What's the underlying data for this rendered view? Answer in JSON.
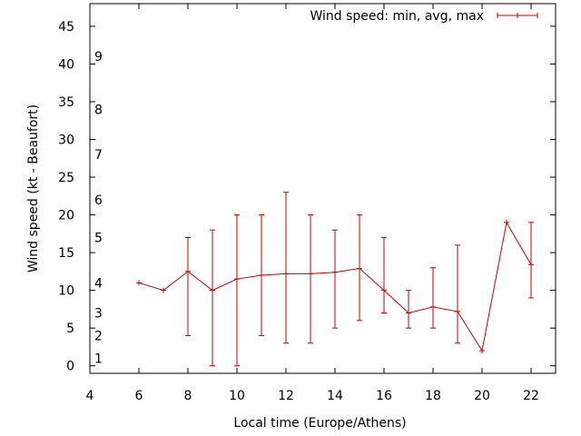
{
  "chart_data": {
    "type": "line",
    "title": "",
    "xlabel": "Local time (Europe/Athens)",
    "ylabel": "Wind speed (kt - Beaufort)",
    "xlim": [
      4,
      23
    ],
    "ylim": [
      -1,
      48
    ],
    "x_ticks": [
      4,
      6,
      8,
      10,
      12,
      14,
      16,
      18,
      20,
      22
    ],
    "y_ticks": [
      0,
      5,
      10,
      15,
      20,
      25,
      30,
      35,
      40,
      45
    ],
    "beaufort_scale": [
      {
        "label": "1",
        "kt": 1
      },
      {
        "label": "2",
        "kt": 4
      },
      {
        "label": "3",
        "kt": 7
      },
      {
        "label": "4",
        "kt": 11
      },
      {
        "label": "5",
        "kt": 17
      },
      {
        "label": "6",
        "kt": 22
      },
      {
        "label": "7",
        "kt": 28
      },
      {
        "label": "8",
        "kt": 34
      },
      {
        "label": "9",
        "kt": 41
      }
    ],
    "grid": false,
    "legend_position": "top-right",
    "series": [
      {
        "name": "Wind speed: min, avg, max",
        "color": "#cc0000",
        "x": [
          6,
          7,
          8,
          9,
          10,
          11,
          12,
          13,
          14,
          15,
          16,
          17,
          18,
          19,
          20,
          21,
          22
        ],
        "avg": [
          11,
          10,
          12.5,
          10,
          11.5,
          12,
          12.2,
          12.2,
          12.4,
          12.9,
          10,
          7,
          7.8,
          7.2,
          2,
          19,
          13.4
        ],
        "min": [
          11,
          10,
          4,
          0,
          0,
          4,
          3,
          3,
          5,
          6,
          7,
          5,
          5,
          3,
          2,
          19,
          9
        ],
        "max": [
          11,
          10,
          17,
          18,
          20,
          20,
          23,
          20,
          18,
          20,
          17,
          10,
          13,
          16,
          2,
          19,
          19
        ]
      }
    ]
  }
}
